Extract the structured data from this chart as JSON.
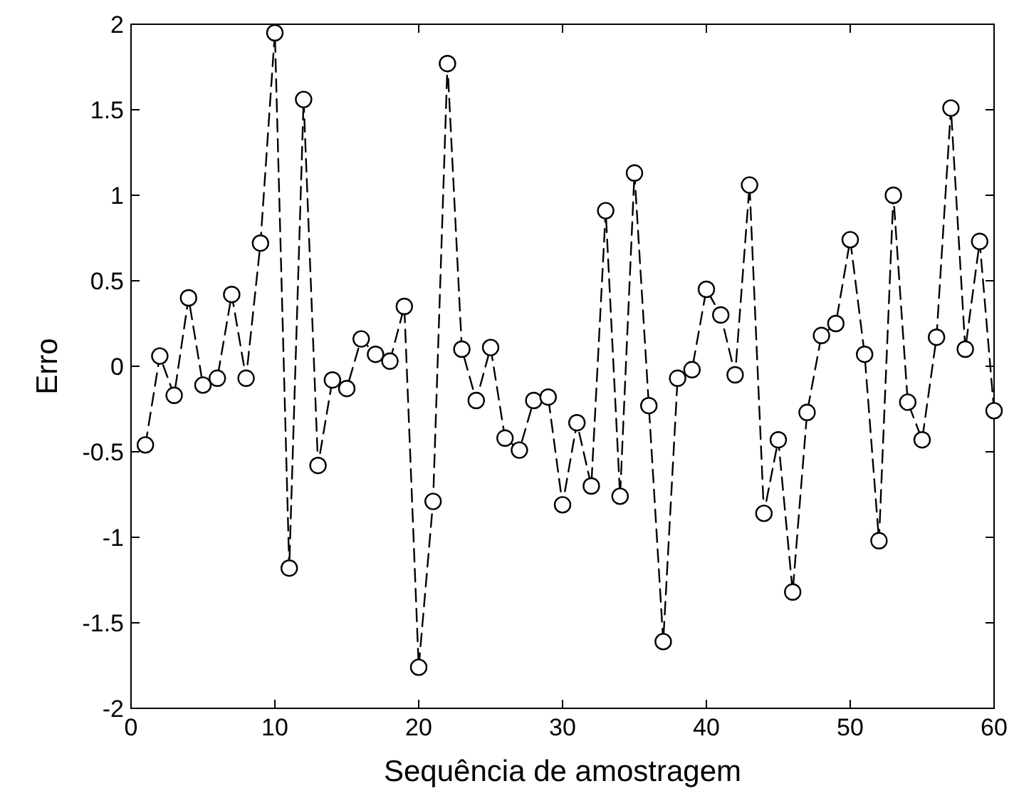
{
  "chart_data": {
    "type": "line",
    "xlabel": "Sequência de amostragem",
    "ylabel": "Erro",
    "x": [
      1,
      2,
      3,
      4,
      5,
      6,
      7,
      8,
      9,
      10,
      11,
      12,
      13,
      14,
      15,
      16,
      17,
      18,
      19,
      20,
      21,
      22,
      23,
      24,
      25,
      26,
      27,
      28,
      29,
      30,
      31,
      32,
      33,
      34,
      35,
      36,
      37,
      38,
      39,
      40,
      41,
      42,
      43,
      44,
      45,
      46,
      47,
      48,
      49,
      50,
      51,
      52,
      53,
      54,
      55,
      56,
      57,
      58,
      59,
      60
    ],
    "series": [
      {
        "color": "#000000",
        "values": [
          -0.46,
          0.06,
          -0.17,
          0.4,
          -0.11,
          -0.07,
          0.42,
          -0.07,
          0.72,
          1.95,
          -1.18,
          1.56,
          -0.58,
          -0.08,
          -0.13,
          0.16,
          0.07,
          0.03,
          0.35,
          -1.76,
          -0.79,
          1.77,
          0.1,
          -0.2,
          0.11,
          -0.42,
          -0.49,
          -0.2,
          -0.18,
          -0.81,
          -0.33,
          -0.7,
          0.91,
          -0.76,
          1.13,
          -0.23,
          -1.61,
          -0.07,
          -0.02,
          0.45,
          0.3,
          -0.05,
          1.06,
          -0.86,
          -0.43,
          -1.32,
          -0.27,
          0.18,
          0.25,
          0.74,
          0.07,
          -1.02,
          1.0,
          -0.21,
          -0.43,
          0.17,
          1.51,
          0.1,
          0.73,
          -0.26
        ]
      }
    ],
    "xlim": [
      0,
      60
    ],
    "xticks": [
      0,
      10,
      20,
      30,
      40,
      50,
      60
    ],
    "ylim": [
      -2,
      2
    ],
    "yticks": [
      -2,
      -1.5,
      -1,
      -0.5,
      0,
      0.5,
      1,
      1.5,
      2
    ],
    "grid": false,
    "marker": "circle",
    "line_style": "dashed"
  }
}
